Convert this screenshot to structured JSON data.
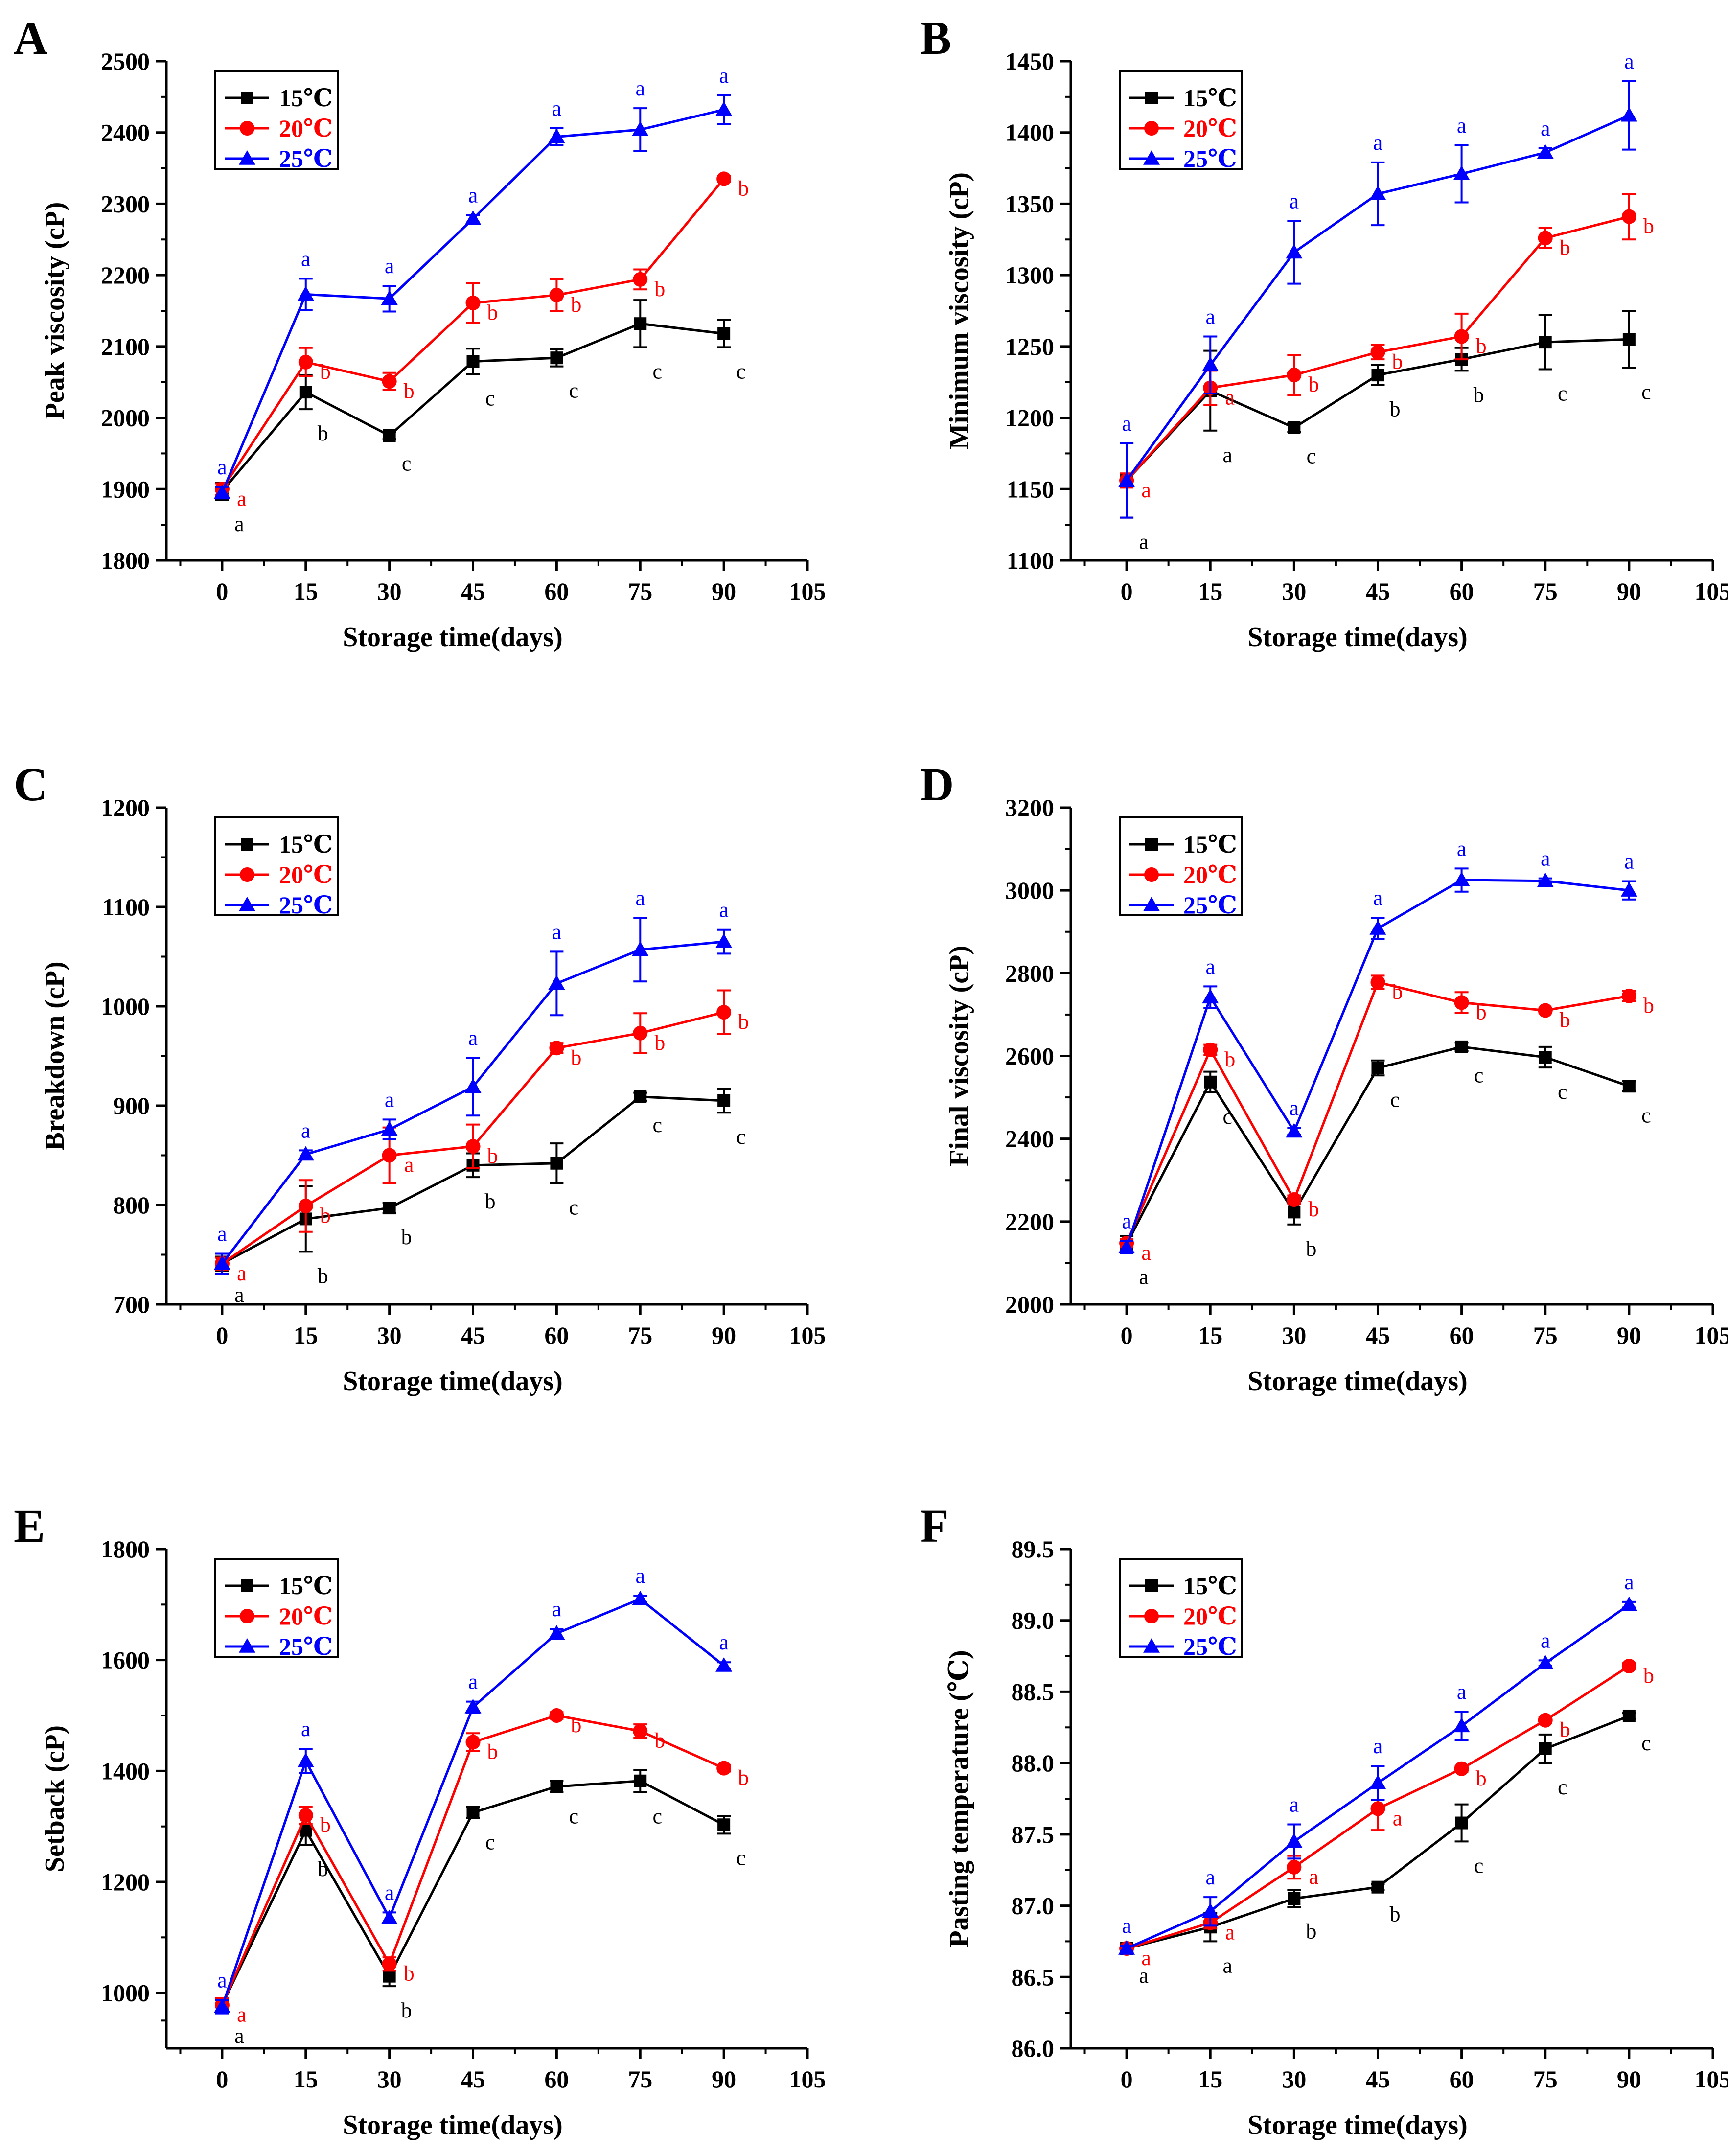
{
  "figure": {
    "colors": {
      "15C": "#000000",
      "20C": "#ff0000",
      "25C": "#0000ff"
    },
    "series_markers": {
      "15C": "square",
      "20C": "circle",
      "25C": "triangle"
    }
  },
  "chart_data": [
    {
      "panel": "A",
      "type": "line",
      "xlabel": "Storage time(days)",
      "ylabel": "Peak viscosity (cP)",
      "x": [
        0,
        15,
        30,
        45,
        60,
        75,
        90
      ],
      "xlim": [
        -10,
        105
      ],
      "xticks": [
        "0",
        "15",
        "30",
        "45",
        "60",
        "75",
        "90",
        "105"
      ],
      "ylim": [
        1800,
        2500
      ],
      "yticks": [
        "1800",
        "1900",
        "2000",
        "2100",
        "2200",
        "2300",
        "2400",
        "2500"
      ],
      "legend_position": "top-left",
      "series": [
        {
          "name": "15℃",
          "color": "#000000",
          "marker": "square",
          "values": [
            1897,
            2036,
            1975,
            2079,
            2084,
            2132,
            2118
          ],
          "errors": [
            12,
            24,
            5,
            18,
            12,
            33,
            19
          ],
          "letters": [
            "a",
            "b",
            "c",
            "c",
            "c",
            "c",
            "c"
          ]
        },
        {
          "name": "20℃",
          "color": "#ff0000",
          "marker": "circle",
          "values": [
            1900,
            2078,
            2051,
            2161,
            2172,
            2194,
            2335
          ],
          "errors": [
            8,
            20,
            12,
            28,
            22,
            14,
            4
          ],
          "letters": [
            "a",
            "b",
            "b",
            "b",
            "b",
            "b",
            "b"
          ]
        },
        {
          "name": "25℃",
          "color": "#0000ff",
          "marker": "triangle",
          "values": [
            1895,
            2173,
            2167,
            2279,
            2394,
            2404,
            2432
          ],
          "errors": [
            8,
            22,
            18,
            5,
            12,
            30,
            20
          ],
          "letters": [
            "a",
            "a",
            "a",
            "a",
            "a",
            "a",
            "a"
          ]
        }
      ]
    },
    {
      "panel": "B",
      "type": "line",
      "xlabel": "Storage time(days)",
      "ylabel": "Minimum viscosity (cP)",
      "x": [
        0,
        15,
        30,
        45,
        60,
        75,
        90
      ],
      "xlim": [
        -10,
        105
      ],
      "xticks": [
        "0",
        "15",
        "30",
        "45",
        "60",
        "75",
        "90",
        "105"
      ],
      "ylim": [
        1100,
        1450
      ],
      "yticks": [
        "1100",
        "1150",
        "1200",
        "1250",
        "1300",
        "1350",
        "1400",
        "1450"
      ],
      "legend_position": "top-left",
      "series": [
        {
          "name": "15℃",
          "color": "#000000",
          "marker": "square",
          "values": [
            1156,
            1219,
            1193,
            1230,
            1241,
            1253,
            1255
          ],
          "errors": [
            26,
            28,
            3,
            7,
            8,
            19,
            20
          ],
          "letters": [
            "a",
            "a",
            "c",
            "b",
            "b",
            "c",
            "c"
          ]
        },
        {
          "name": "20℃",
          "color": "#ff0000",
          "marker": "circle",
          "values": [
            1156,
            1221,
            1230,
            1246,
            1257,
            1326,
            1341
          ],
          "errors": [
            5,
            12,
            14,
            5,
            16,
            7,
            16
          ],
          "letters": [
            "a",
            "a",
            "b",
            "b",
            "b",
            "b",
            "b"
          ]
        },
        {
          "name": "25℃",
          "color": "#0000ff",
          "marker": "triangle",
          "values": [
            1156,
            1237,
            1316,
            1357,
            1371,
            1386,
            1412
          ],
          "errors": [
            26,
            20,
            22,
            22,
            20,
            3,
            24
          ],
          "letters": [
            "a",
            "a",
            "a",
            "a",
            "a",
            "a",
            "a"
          ]
        }
      ]
    },
    {
      "panel": "C",
      "type": "line",
      "xlabel": "Storage time(days)",
      "ylabel": "Breakdown (cP)",
      "x": [
        0,
        15,
        30,
        45,
        60,
        75,
        90
      ],
      "xlim": [
        -10,
        105
      ],
      "xticks": [
        "0",
        "15",
        "30",
        "45",
        "60",
        "75",
        "90",
        "105"
      ],
      "ylim": [
        700,
        1200
      ],
      "yticks": [
        "700",
        "800",
        "900",
        "1000",
        "1100",
        "1200"
      ],
      "legend_position": "top-left",
      "series": [
        {
          "name": "15℃",
          "color": "#000000",
          "marker": "square",
          "values": [
            741,
            786,
            797,
            840,
            842,
            909,
            905
          ],
          "errors": [
            7,
            33,
            5,
            12,
            20,
            4,
            12
          ],
          "letters": [
            "a",
            "b",
            "b",
            "b",
            "c",
            "c",
            "c"
          ]
        },
        {
          "name": "20℃",
          "color": "#ff0000",
          "marker": "circle",
          "values": [
            741,
            799,
            850,
            859,
            958,
            973,
            994
          ],
          "errors": [
            6,
            26,
            28,
            22,
            5,
            20,
            22
          ],
          "letters": [
            "a",
            "b",
            "a",
            "b",
            "b",
            "b",
            "b"
          ]
        },
        {
          "name": "25℃",
          "color": "#0000ff",
          "marker": "triangle",
          "values": [
            741,
            851,
            876,
            919,
            1023,
            1057,
            1065
          ],
          "errors": [
            10,
            4,
            10,
            29,
            32,
            32,
            12
          ],
          "letters": [
            "a",
            "a",
            "a",
            "a",
            "a",
            "a",
            "a"
          ]
        }
      ]
    },
    {
      "panel": "D",
      "type": "line",
      "xlabel": "Storage time(days)",
      "ylabel": "Final viscosity (cP)",
      "x": [
        0,
        15,
        30,
        45,
        60,
        75,
        90
      ],
      "xlim": [
        -10,
        105
      ],
      "xticks": [
        "0",
        "15",
        "30",
        "45",
        "60",
        "75",
        "90",
        "105"
      ],
      "ylim": [
        2000,
        3200
      ],
      "yticks": [
        "2000",
        "2200",
        "2400",
        "2600",
        "2800",
        "3000",
        "3200"
      ],
      "legend_position": "top-left",
      "series": [
        {
          "name": "15℃",
          "color": "#000000",
          "marker": "square",
          "values": [
            2145,
            2537,
            2223,
            2571,
            2622,
            2597,
            2527
          ],
          "errors": [
            20,
            25,
            30,
            18,
            10,
            25,
            12
          ],
          "letters": [
            "a",
            "c",
            "b",
            "c",
            "c",
            "c",
            "c"
          ]
        },
        {
          "name": "20℃",
          "color": "#ff0000",
          "marker": "circle",
          "values": [
            2148,
            2615,
            2253,
            2778,
            2729,
            2710,
            2745
          ],
          "errors": [
            10,
            12,
            10,
            16,
            25,
            6,
            12
          ],
          "letters": [
            "a",
            "b",
            "b",
            "b",
            "b",
            "b",
            "b"
          ]
        },
        {
          "name": "25℃",
          "color": "#0000ff",
          "marker": "triangle",
          "values": [
            2138,
            2742,
            2418,
            2908,
            3025,
            3023,
            3000
          ],
          "errors": [
            15,
            26,
            8,
            26,
            28,
            6,
            22
          ],
          "letters": [
            "a",
            "a",
            "a",
            "a",
            "a",
            "a",
            "a"
          ]
        }
      ]
    },
    {
      "panel": "E",
      "type": "line",
      "xlabel": "Storage time(days)",
      "ylabel": "Setback (cP)",
      "x": [
        0,
        15,
        30,
        45,
        60,
        75,
        90
      ],
      "xlim": [
        -10,
        105
      ],
      "xticks": [
        "0",
        "15",
        "30",
        "45",
        "60",
        "75",
        "90",
        "105"
      ],
      "ylim": [
        900,
        1800
      ],
      "yticks": [
        "1000",
        "1200",
        "1400",
        "1600",
        "1800"
      ],
      "legend_position": "top-left",
      "series": [
        {
          "name": "15℃",
          "color": "#000000",
          "marker": "square",
          "values": [
            978,
            1293,
            1030,
            1325,
            1372,
            1382,
            1303
          ],
          "errors": [
            12,
            26,
            18,
            10,
            10,
            20,
            16
          ],
          "letters": [
            "a",
            "b",
            "b",
            "c",
            "c",
            "c",
            "c"
          ]
        },
        {
          "name": "20℃",
          "color": "#ff0000",
          "marker": "circle",
          "values": [
            978,
            1320,
            1052,
            1452,
            1500,
            1472,
            1405
          ],
          "errors": [
            12,
            15,
            12,
            16,
            6,
            12,
            6
          ],
          "letters": [
            "a",
            "b",
            "b",
            "b",
            "b",
            "b",
            "b"
          ]
        },
        {
          "name": "25℃",
          "color": "#0000ff",
          "marker": "triangle",
          "values": [
            975,
            1418,
            1135,
            1515,
            1648,
            1710,
            1590
          ],
          "errors": [
            12,
            22,
            10,
            10,
            8,
            6,
            6
          ],
          "letters": [
            "a",
            "a",
            "a",
            "a",
            "a",
            "a",
            "a"
          ]
        }
      ]
    },
    {
      "panel": "F",
      "type": "line",
      "xlabel": "Storage time(days)",
      "ylabel": "Pasting temperature  (℃)",
      "x": [
        0,
        15,
        30,
        45,
        60,
        75,
        90
      ],
      "xlim": [
        -10,
        105
      ],
      "xticks": [
        "0",
        "15",
        "30",
        "45",
        "60",
        "75",
        "90",
        "105"
      ],
      "ylim": [
        86.0,
        89.5
      ],
      "yticks": [
        "86.0",
        "86.5",
        "87.0",
        "87.5",
        "88.0",
        "88.5",
        "89.0",
        "89.5"
      ],
      "legend_position": "top-left",
      "series": [
        {
          "name": "15℃",
          "color": "#000000",
          "marker": "square",
          "values": [
            86.7,
            86.85,
            87.05,
            87.13,
            87.58,
            88.1,
            88.33
          ],
          "errors": [
            0.02,
            0.1,
            0.06,
            0.02,
            0.13,
            0.1,
            0.02
          ],
          "letters": [
            "a",
            "a",
            "b",
            "b",
            "c",
            "c",
            "c"
          ]
        },
        {
          "name": "20℃",
          "color": "#ff0000",
          "marker": "circle",
          "values": [
            86.7,
            86.88,
            87.27,
            87.68,
            87.96,
            88.3,
            88.68
          ],
          "errors": [
            0.02,
            0.04,
            0.08,
            0.15,
            0.02,
            0.02,
            0.02
          ],
          "letters": [
            "a",
            "a",
            "a",
            "a",
            "b",
            "b",
            "b"
          ]
        },
        {
          "name": "25℃",
          "color": "#0000ff",
          "marker": "triangle",
          "values": [
            86.7,
            86.96,
            87.45,
            87.86,
            88.26,
            88.7,
            89.11
          ],
          "errors": [
            0.02,
            0.1,
            0.12,
            0.12,
            0.1,
            0.02,
            0.02
          ],
          "letters": [
            "a",
            "a",
            "a",
            "a",
            "a",
            "a",
            "a"
          ]
        }
      ]
    }
  ]
}
